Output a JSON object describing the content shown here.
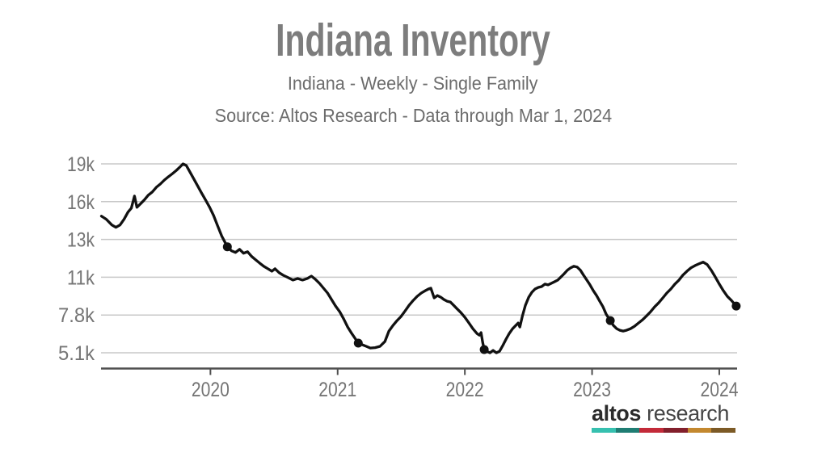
{
  "header": {
    "title": "Indiana Inventory",
    "subtitle": "Indiana - Weekly - Single Family",
    "source": "Source: Altos Research - Data through Mar 1, 2024"
  },
  "logo": {
    "brand_bold": "altos",
    "brand_light": "research",
    "bar_colors": [
      "#36c0af",
      "#1f7d73",
      "#c32a39",
      "#821f2b",
      "#c3882f",
      "#7c5a26"
    ]
  },
  "chart_data": {
    "type": "line",
    "title": "Indiana Inventory",
    "subtitle": "Indiana - Weekly - Single Family",
    "source": "Source: Altos Research - Data through Mar 1, 2024",
    "xlabel": "",
    "ylabel": "",
    "grid": true,
    "legend_position": "none",
    "xlim": [
      2019.14,
      2024.14
    ],
    "x_ticks": [
      {
        "label": "2020",
        "value": 2020
      },
      {
        "label": "2021",
        "value": 2021
      },
      {
        "label": "2022",
        "value": 2022
      },
      {
        "label": "2023",
        "value": 2023
      },
      {
        "label": "2024",
        "value": 2024
      }
    ],
    "y_ticks": [
      {
        "label": "19k",
        "value": 19000
      },
      {
        "label": "16k",
        "value": 16000
      },
      {
        "label": "13k",
        "value": 13000
      },
      {
        "label": "11k",
        "value": 11000
      },
      {
        "label": "7.8k",
        "value": 7800
      },
      {
        "label": "5.1k",
        "value": 5100
      }
    ],
    "colors": {
      "line": "#111111",
      "grid": "#c8c8c8",
      "axis": "#4f4f4f",
      "tick_text": "#757575"
    },
    "series": [
      {
        "name": "Inventory",
        "x": [
          2019.143,
          2019.181,
          2019.225,
          2019.257,
          2019.289,
          2019.321,
          2019.352,
          2019.378,
          2019.403,
          2019.422,
          2019.448,
          2019.479,
          2019.511,
          2019.543,
          2019.575,
          2019.606,
          2019.638,
          2019.67,
          2019.702,
          2019.733,
          2019.759,
          2019.784,
          2019.81,
          2019.835,
          2019.867,
          2019.898,
          2019.93,
          2019.962,
          2019.994,
          2020.025,
          2020.057,
          2020.089,
          2020.133,
          2020.165,
          2020.197,
          2020.229,
          2020.26,
          2020.292,
          2020.324,
          2020.356,
          2020.387,
          2020.419,
          2020.451,
          2020.483,
          2020.508,
          2020.54,
          2020.571,
          2020.61,
          2020.648,
          2020.686,
          2020.724,
          2020.762,
          2020.794,
          2020.825,
          2020.857,
          2020.889,
          2020.921,
          2020.952,
          2020.984,
          2021.016,
          2021.048,
          2021.079,
          2021.111,
          2021.162,
          2021.194,
          2021.225,
          2021.257,
          2021.295,
          2021.333,
          2021.371,
          2021.403,
          2021.435,
          2021.467,
          2021.498,
          2021.53,
          2021.562,
          2021.594,
          2021.625,
          2021.657,
          2021.689,
          2021.714,
          2021.733,
          2021.759,
          2021.784,
          2021.81,
          2021.835,
          2021.86,
          2021.886,
          2021.911,
          2021.937,
          2021.968,
          2022.0,
          2022.032,
          2022.063,
          2022.095,
          2022.114,
          2022.127,
          2022.14,
          2022.152,
          2022.171,
          2022.197,
          2022.222,
          2022.248,
          2022.273,
          2022.298,
          2022.324,
          2022.349,
          2022.375,
          2022.4,
          2022.419,
          2022.432,
          2022.451,
          2022.476,
          2022.502,
          2022.527,
          2022.552,
          2022.578,
          2022.603,
          2022.629,
          2022.654,
          2022.679,
          2022.705,
          2022.73,
          2022.756,
          2022.781,
          2022.806,
          2022.832,
          2022.857,
          2022.883,
          2022.908,
          2022.933,
          2022.959,
          2022.984,
          2023.01,
          2023.035,
          2023.06,
          2023.086,
          2023.111,
          2023.143,
          2023.168,
          2023.194,
          2023.219,
          2023.244,
          2023.27,
          2023.302,
          2023.333,
          2023.365,
          2023.397,
          2023.429,
          2023.46,
          2023.492,
          2023.524,
          2023.556,
          2023.587,
          2023.619,
          2023.651,
          2023.683,
          2023.714,
          2023.746,
          2023.778,
          2023.81,
          2023.841,
          2023.873,
          2023.905,
          2023.937,
          2023.968,
          2024.0,
          2024.032,
          2024.063,
          2024.095,
          2024.133
        ],
        "y": [
          14850,
          14600,
          14150,
          13960,
          14150,
          14600,
          15170,
          15490,
          16450,
          15550,
          15810,
          16130,
          16510,
          16770,
          17150,
          17400,
          17720,
          17980,
          18230,
          18490,
          18740,
          19000,
          18870,
          18430,
          17850,
          17280,
          16700,
          16130,
          15550,
          14900,
          14080,
          13260,
          12610,
          12400,
          12310,
          12480,
          12270,
          12350,
          12100,
          11920,
          11750,
          11580,
          11450,
          11320,
          11450,
          11240,
          11110,
          10970,
          10760,
          10900,
          10760,
          10900,
          11060,
          10830,
          10480,
          10070,
          9660,
          9110,
          8560,
          8080,
          7510,
          6940,
          6480,
          5790,
          5670,
          5560,
          5440,
          5470,
          5560,
          5900,
          6650,
          7050,
          7400,
          7690,
          8140,
          8630,
          9040,
          9380,
          9660,
          9860,
          10000,
          10070,
          9250,
          9450,
          9310,
          9110,
          8970,
          8900,
          8630,
          8350,
          8010,
          7630,
          7230,
          6820,
          6480,
          6360,
          6540,
          5850,
          5330,
          5210,
          5100,
          5270,
          5100,
          5210,
          5620,
          6080,
          6480,
          6820,
          7050,
          7230,
          6940,
          7690,
          8630,
          9310,
          9730,
          10000,
          10140,
          10210,
          10420,
          10350,
          10480,
          10620,
          10760,
          11020,
          11190,
          11370,
          11500,
          11580,
          11540,
          11370,
          11110,
          10760,
          10350,
          9860,
          9450,
          8970,
          8490,
          7870,
          7400,
          7050,
          6820,
          6710,
          6650,
          6710,
          6820,
          6990,
          7230,
          7460,
          7740,
          8080,
          8490,
          8830,
          9250,
          9660,
          10000,
          10420,
          10760,
          11110,
          11320,
          11500,
          11620,
          11710,
          11800,
          11670,
          11370,
          11020,
          10420,
          9860,
          9380,
          9040,
          8560
        ]
      }
    ],
    "markers": [
      [
        2020.133,
        12610
      ],
      [
        2021.162,
        5790
      ],
      [
        2022.152,
        5330
      ],
      [
        2023.143,
        7400
      ],
      [
        2024.133,
        8560
      ]
    ]
  }
}
